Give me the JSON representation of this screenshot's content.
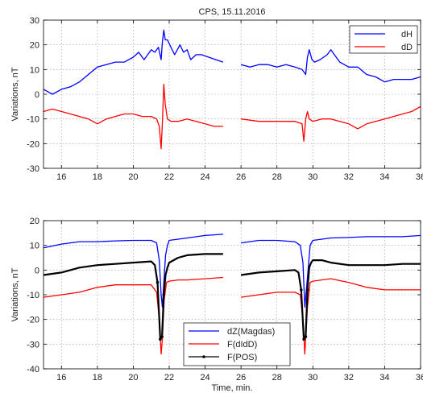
{
  "chart_data": [
    {
      "type": "line",
      "title": "CPS, 15.11.2016",
      "xlabel": "",
      "ylabel": "Variations, nT",
      "xlim": [
        15,
        36
      ],
      "ylim": [
        -30,
        30
      ],
      "xticks": [
        16,
        18,
        20,
        22,
        24,
        26,
        28,
        30,
        32,
        34,
        36
      ],
      "yticks": [
        -30,
        -20,
        -10,
        0,
        10,
        20,
        30
      ],
      "grid": true,
      "legend_position": "top-right",
      "series": [
        {
          "name": "dH",
          "color": "#0000ff",
          "x": [
            15,
            15.5,
            16,
            16.5,
            17,
            17.5,
            18,
            18.5,
            19,
            19.5,
            20,
            20.3,
            20.6,
            21,
            21.2,
            21.4,
            21.55,
            21.62,
            21.7,
            21.78,
            21.9,
            22.1,
            22.3,
            22.6,
            22.8,
            23,
            23.2,
            23.5,
            23.8,
            24.2,
            24.6,
            25,
            null,
            26,
            26.5,
            27,
            27.5,
            28,
            28.5,
            29,
            29.4,
            29.6,
            29.7,
            29.8,
            29.95,
            30.1,
            30.4,
            30.8,
            31,
            31.5,
            32,
            32.5,
            33,
            33.5,
            34,
            34.5,
            35,
            35.5,
            36
          ],
          "y": [
            2,
            0,
            2,
            3,
            5,
            8,
            11,
            12,
            13,
            13,
            15,
            17,
            14,
            18,
            17,
            19,
            14,
            21,
            26,
            22,
            22,
            19,
            16,
            20,
            17,
            18,
            14,
            16,
            16,
            15,
            14,
            13,
            null,
            12,
            11,
            12,
            12,
            11,
            12,
            11,
            10,
            8,
            15,
            18,
            14,
            13,
            14,
            16,
            18,
            13,
            11,
            11,
            8,
            7,
            5,
            6,
            6,
            6,
            7
          ]
        },
        {
          "name": "dD",
          "color": "#ff0000",
          "x": [
            15,
            15.5,
            16,
            16.5,
            17,
            17.5,
            18,
            18.5,
            19,
            19.5,
            20,
            20.5,
            21,
            21.3,
            21.45,
            21.55,
            21.62,
            21.7,
            21.78,
            21.9,
            22.1,
            22.5,
            23,
            23.5,
            24,
            24.5,
            25,
            null,
            26,
            27,
            28,
            29,
            29.4,
            29.5,
            29.6,
            29.7,
            29.8,
            30,
            30.5,
            31,
            31.5,
            32,
            32.5,
            33,
            33.5,
            34,
            34.5,
            35,
            35.5,
            36
          ],
          "y": [
            -7,
            -6,
            -7,
            -8,
            -9,
            -10,
            -12,
            -10,
            -9,
            -8,
            -8,
            -9,
            -9,
            -10,
            -13,
            -22,
            -12,
            4,
            -4,
            -10,
            -11,
            -11,
            -10,
            -11,
            -12,
            -13,
            -13,
            null,
            -10,
            -11,
            -11,
            -11,
            -12,
            -19,
            -10,
            -7,
            -10,
            -11,
            -10,
            -10,
            -11,
            -12,
            -14,
            -12,
            -11,
            -10,
            -9,
            -8,
            -7,
            -5
          ]
        }
      ]
    },
    {
      "type": "line",
      "title": "",
      "xlabel": "Time, min.",
      "ylabel": "Variations, nT",
      "xlim": [
        15,
        36
      ],
      "ylim": [
        -40,
        20
      ],
      "xticks": [
        16,
        18,
        20,
        22,
        24,
        26,
        28,
        30,
        32,
        34,
        36
      ],
      "yticks": [
        -40,
        -30,
        -20,
        -10,
        0,
        10,
        20
      ],
      "grid": true,
      "legend_position": "bottom-center",
      "series": [
        {
          "name": "dZ(Magdas)",
          "color": "#0000ff",
          "x": [
            15,
            16,
            17,
            18,
            19,
            20,
            21,
            21.3,
            21.45,
            21.55,
            21.62,
            21.7,
            21.8,
            21.9,
            22,
            22.5,
            23,
            24,
            25,
            null,
            26,
            27,
            28,
            29,
            29.3,
            29.45,
            29.55,
            29.7,
            29.85,
            30,
            30.5,
            31,
            32,
            33,
            34,
            35,
            36
          ],
          "y": [
            9,
            10.5,
            11.5,
            11.5,
            11.8,
            12,
            12,
            11,
            4,
            -10,
            -15,
            -5,
            6,
            10,
            12,
            12.5,
            13,
            14,
            14.5,
            null,
            11,
            12,
            12,
            11.5,
            10,
            3,
            -15,
            -3,
            10,
            12,
            12.5,
            13,
            13.2,
            13.5,
            13.5,
            13.5,
            14
          ]
        },
        {
          "name": "F(dIdD)",
          "color": "#ff0000",
          "x": [
            15,
            16,
            17,
            18,
            19,
            20,
            21,
            21.3,
            21.45,
            21.55,
            21.62,
            21.72,
            21.85,
            22,
            22.5,
            23,
            24,
            25,
            null,
            26,
            27,
            28,
            29,
            29.3,
            29.45,
            29.55,
            29.7,
            29.85,
            30,
            30.5,
            31,
            32,
            33,
            34,
            35,
            36
          ],
          "y": [
            -11,
            -10,
            -9,
            -7,
            -6,
            -6,
            -6,
            -9,
            -20,
            -34,
            -28,
            -12,
            -5,
            -4.5,
            -4,
            -4,
            -3.5,
            -3,
            null,
            -11,
            -10,
            -9,
            -9,
            -10,
            -20,
            -34,
            -15,
            -5,
            -4.5,
            -4,
            -3.5,
            -5,
            -7,
            -8,
            -8,
            -8
          ]
        },
        {
          "name": "F(POS)",
          "color": "#000000",
          "x": [
            15,
            16,
            17,
            18,
            19,
            20,
            21,
            21.2,
            21.35,
            21.5,
            21.6,
            21.7,
            21.8,
            21.9,
            22,
            22.5,
            23,
            24,
            25,
            null,
            26,
            27,
            28,
            29,
            29.2,
            29.35,
            29.5,
            29.6,
            29.7,
            29.8,
            29.9,
            30,
            30.5,
            31,
            32,
            33,
            34,
            35,
            36
          ],
          "y": [
            -2,
            -1,
            1,
            2,
            2.5,
            3,
            3.5,
            2,
            -5,
            -28,
            -27,
            -10,
            -2,
            1,
            3,
            5,
            6,
            6.5,
            6.5,
            null,
            -2,
            -1,
            -0.5,
            0,
            -1,
            -8,
            -28,
            -27,
            -8,
            1,
            3,
            4,
            4,
            3,
            2,
            2,
            2,
            2.5,
            2.5
          ]
        }
      ]
    }
  ]
}
